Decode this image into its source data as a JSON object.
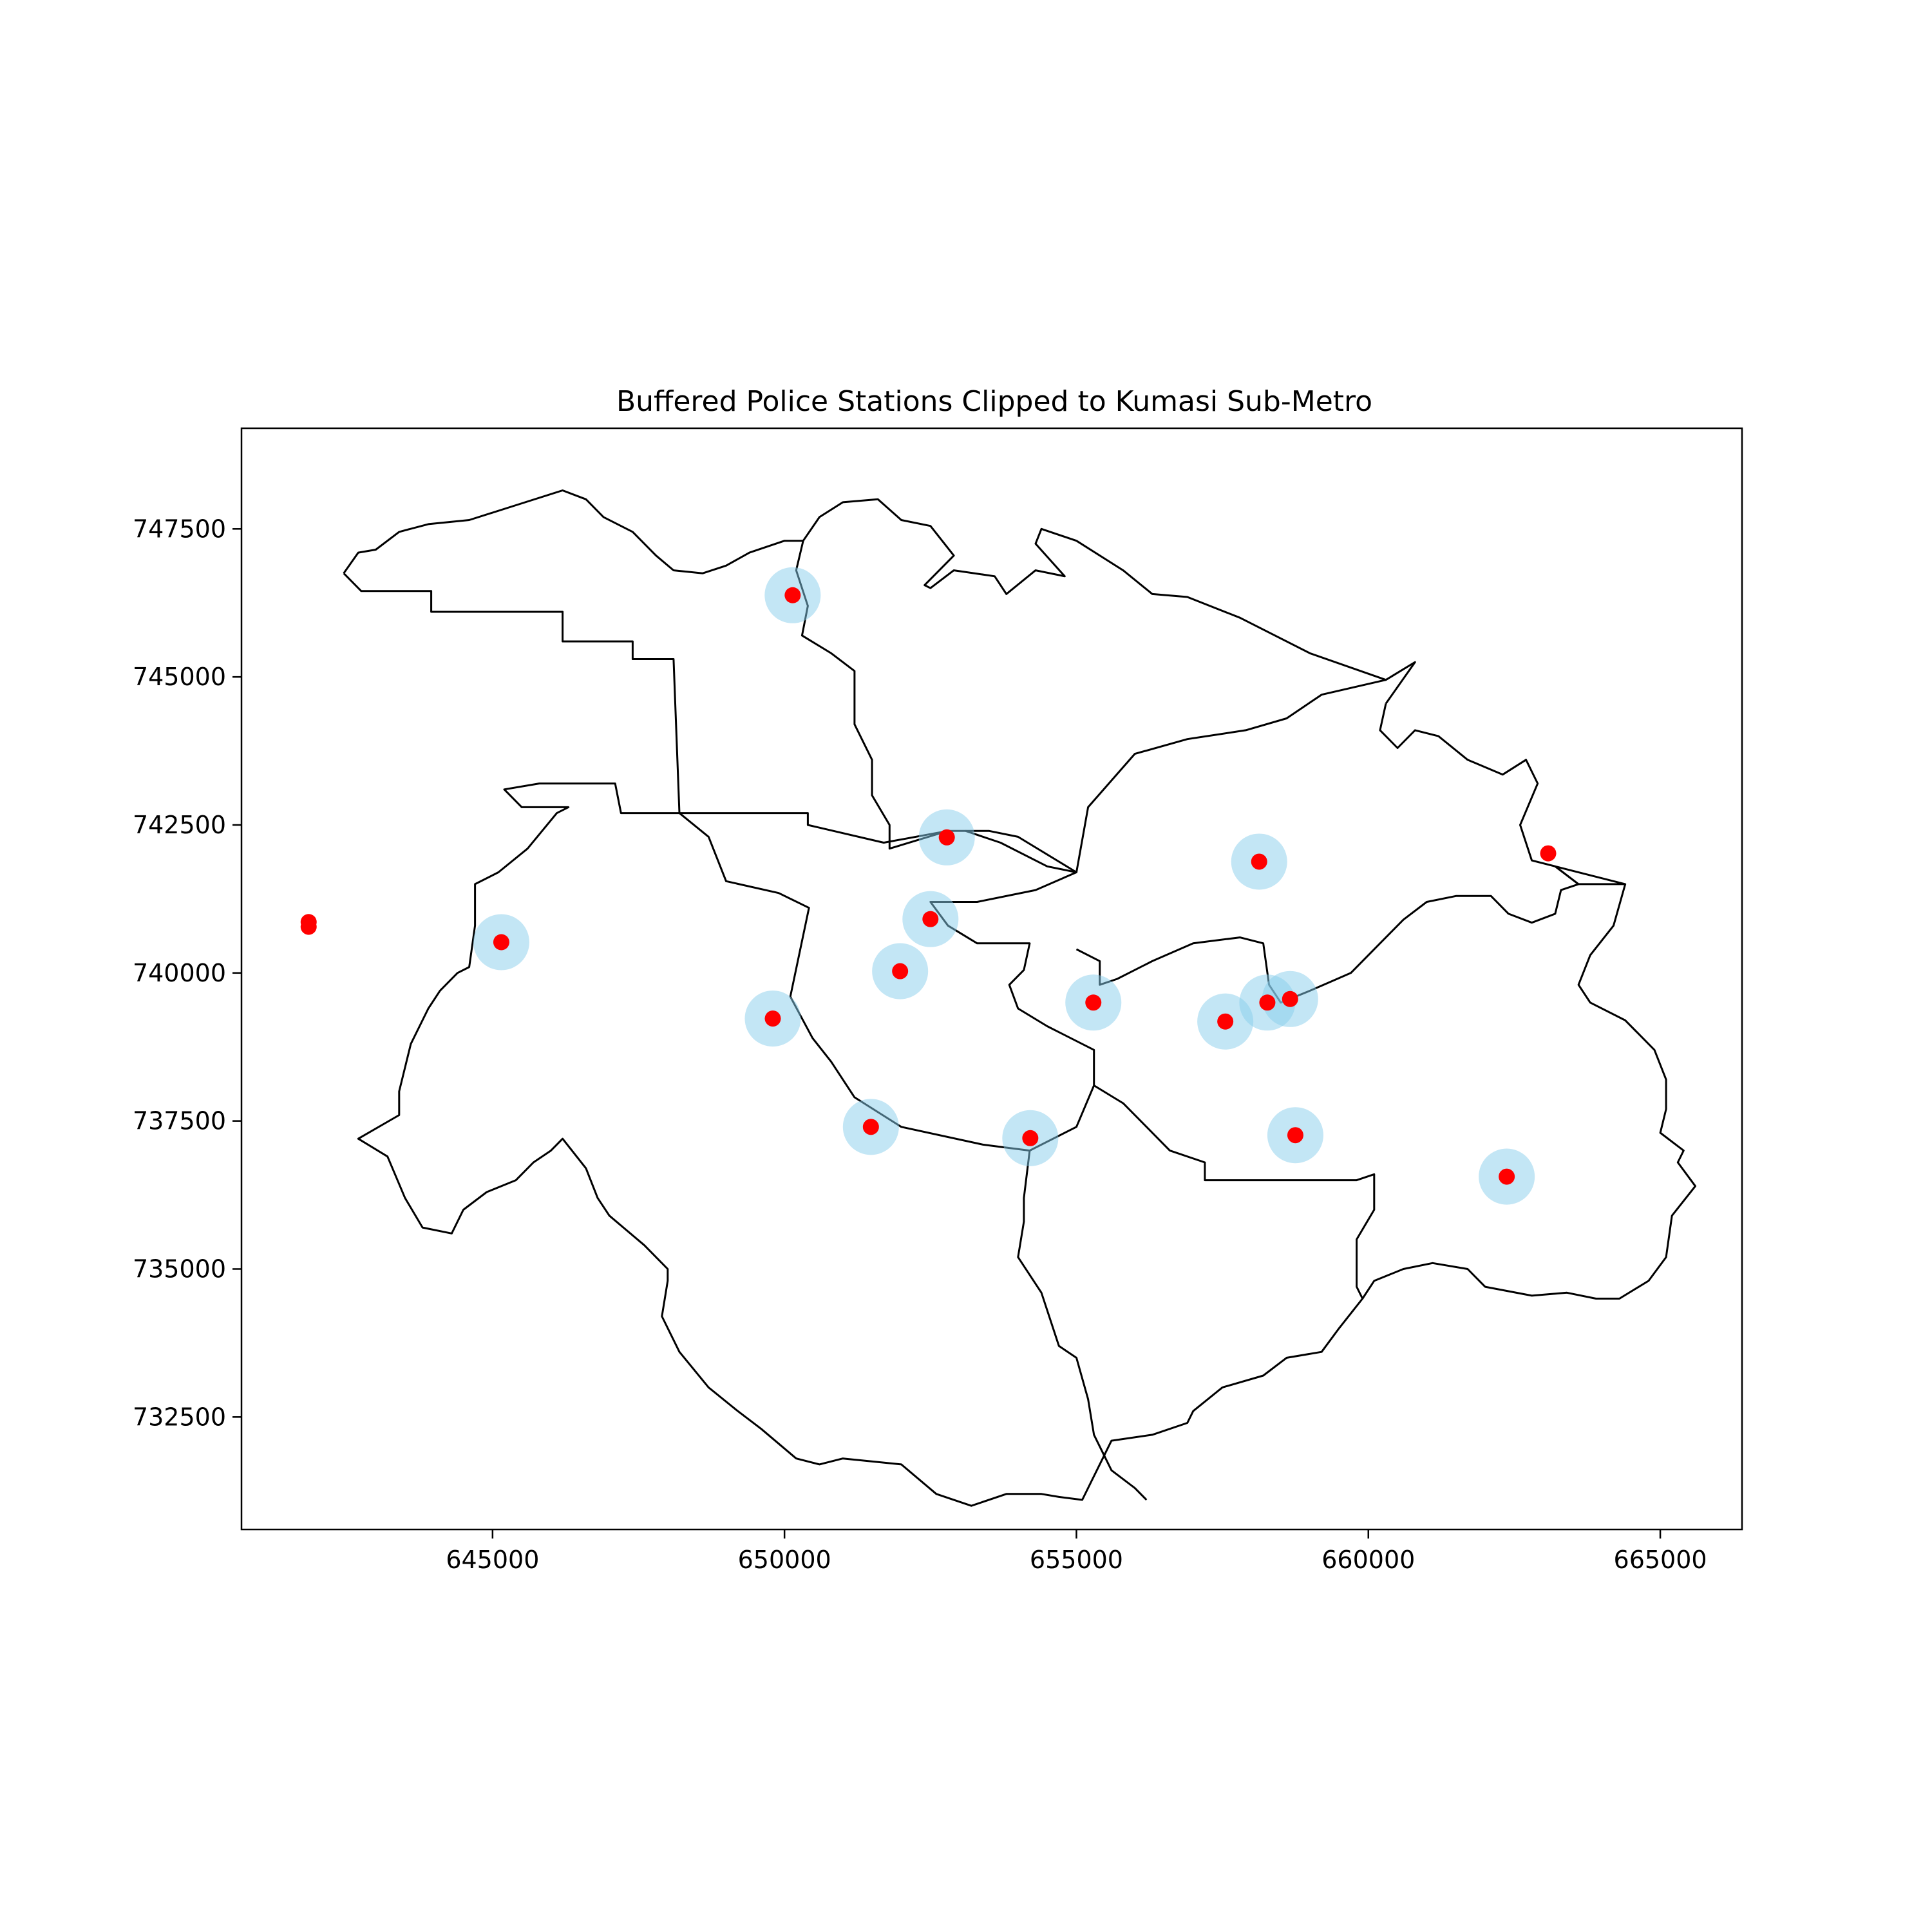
{
  "chart_data": {
    "type": "scatter",
    "title": "Buffered Police Stations Clipped to Kumasi Sub-Metro",
    "xlabel": "",
    "ylabel": "",
    "xlim": [
      640700,
      666400
    ],
    "ylim": [
      730600,
      749200
    ],
    "xticks": [
      645000,
      650000,
      655000,
      660000,
      665000
    ],
    "yticks": [
      732500,
      735000,
      737500,
      740000,
      742500,
      745000,
      747500
    ],
    "grid": false,
    "buffer_color": "#87CEEB",
    "point_color": "#FF0000",
    "boundary_color": "#000000",
    "buffer_radius": 480,
    "stations": [
      {
        "x": 641850,
        "y": 740780,
        "buffered": false
      },
      {
        "x": 641850,
        "y": 740860,
        "buffered": false
      },
      {
        "x": 645150,
        "y": 740520,
        "buffered": true
      },
      {
        "x": 650140,
        "y": 746380,
        "buffered": true
      },
      {
        "x": 652780,
        "y": 742290,
        "buffered": true
      },
      {
        "x": 652500,
        "y": 740910,
        "buffered": true
      },
      {
        "x": 651980,
        "y": 740030,
        "buffered": true
      },
      {
        "x": 649800,
        "y": 739230,
        "buffered": true
      },
      {
        "x": 651480,
        "y": 737400,
        "buffered": true
      },
      {
        "x": 654210,
        "y": 737210,
        "buffered": true
      },
      {
        "x": 655290,
        "y": 739500,
        "buffered": true
      },
      {
        "x": 657550,
        "y": 739180,
        "buffered": true
      },
      {
        "x": 658270,
        "y": 739500,
        "buffered": true
      },
      {
        "x": 658660,
        "y": 739560,
        "buffered": true
      },
      {
        "x": 658130,
        "y": 741880,
        "buffered": true
      },
      {
        "x": 658750,
        "y": 737260,
        "buffered": true
      },
      {
        "x": 662370,
        "y": 736560,
        "buffered": true
      },
      {
        "x": 663080,
        "y": 742020,
        "buffered": false
      }
    ],
    "boundaries": [
      [
        [
          642450,
          746750
        ],
        [
          642700,
          747100
        ],
        [
          643000,
          747150
        ],
        [
          643400,
          747450
        ],
        [
          643900,
          747580
        ],
        [
          644600,
          747650
        ],
        [
          645400,
          747900
        ],
        [
          646200,
          748150
        ],
        [
          646600,
          748000
        ],
        [
          646900,
          747700
        ],
        [
          647400,
          747450
        ],
        [
          647800,
          747050
        ],
        [
          648100,
          746800
        ],
        [
          648600,
          746750
        ],
        [
          649000,
          746880
        ],
        [
          649400,
          747100
        ],
        [
          650000,
          747300
        ],
        [
          650320,
          747300
        ],
        [
          650600,
          747700
        ],
        [
          651000,
          747950
        ],
        [
          651600,
          748000
        ],
        [
          652000,
          747650
        ],
        [
          652500,
          747550
        ],
        [
          652900,
          747050
        ],
        [
          652400,
          746550
        ],
        [
          652500,
          746500
        ],
        [
          652900,
          746800
        ],
        [
          653600,
          746700
        ],
        [
          653800,
          746400
        ],
        [
          654300,
          746800
        ],
        [
          654800,
          746700
        ],
        [
          654300,
          747250
        ],
        [
          654400,
          747500
        ],
        [
          655000,
          747300
        ],
        [
          655800,
          746800
        ],
        [
          656300,
          746400
        ],
        [
          656900,
          746350
        ],
        [
          657800,
          746000
        ],
        [
          659000,
          745400
        ],
        [
          660300,
          744950
        ],
        [
          660800,
          745250
        ],
        [
          660300,
          744550
        ]
      ],
      [
        [
          642450,
          746750
        ],
        [
          642750,
          746450
        ],
        [
          643200,
          746450
        ],
        [
          643950,
          746450
        ],
        [
          643950,
          746100
        ],
        [
          645600,
          746100
        ],
        [
          646200,
          746100
        ],
        [
          646200,
          745600
        ],
        [
          647400,
          745600
        ],
        [
          647400,
          745300
        ],
        [
          648100,
          745300
        ],
        [
          648200,
          742700
        ],
        [
          648700,
          742300
        ],
        [
          649000,
          741550
        ],
        [
          649900,
          741350
        ],
        [
          650420,
          741100
        ],
        [
          650100,
          739600
        ],
        [
          650480,
          738900
        ],
        [
          650800,
          738500
        ],
        [
          651200,
          737900
        ],
        [
          652000,
          737400
        ],
        [
          653400,
          737100
        ],
        [
          654200,
          737000
        ],
        [
          655000,
          737400
        ],
        [
          655300,
          738100
        ],
        [
          655300,
          738700
        ],
        [
          654500,
          739100
        ],
        [
          654000,
          739400
        ],
        [
          653850,
          739800
        ],
        [
          654100,
          740050
        ],
        [
          654200,
          740500
        ],
        [
          653300,
          740500
        ],
        [
          652800,
          740800
        ],
        [
          652500,
          741200
        ],
        [
          653300,
          741200
        ],
        [
          654300,
          741400
        ],
        [
          655000,
          741700
        ],
        [
          654500,
          741800
        ],
        [
          653700,
          742200
        ],
        [
          653100,
          742400
        ]
      ],
      [
        [
          648200,
          742700
        ],
        [
          649000,
          742700
        ],
        [
          650400,
          742700
        ],
        [
          650400,
          742500
        ],
        [
          651700,
          742200
        ],
        [
          652800,
          742400
        ],
        [
          653500,
          742400
        ],
        [
          654000,
          742300
        ],
        [
          655000,
          741700
        ]
      ],
      [
        [
          650320,
          747300
        ],
        [
          650200,
          746800
        ],
        [
          650400,
          746200
        ],
        [
          650300,
          745700
        ],
        [
          650800,
          745400
        ],
        [
          651200,
          745100
        ],
        [
          651200,
          744200
        ],
        [
          651500,
          743600
        ],
        [
          651500,
          743000
        ],
        [
          651800,
          742500
        ],
        [
          651800,
          742100
        ],
        [
          652800,
          742400
        ]
      ],
      [
        [
          655000,
          741700
        ],
        [
          655200,
          742800
        ],
        [
          656000,
          743700
        ],
        [
          656900,
          743950
        ],
        [
          657900,
          744100
        ],
        [
          658600,
          744300
        ],
        [
          659200,
          744700
        ],
        [
          660300,
          744950
        ]
      ],
      [
        [
          660300,
          744550
        ],
        [
          660200,
          744100
        ],
        [
          660500,
          743800
        ],
        [
          660800,
          744100
        ],
        [
          661200,
          744000
        ],
        [
          661700,
          743600
        ],
        [
          662300,
          743350
        ],
        [
          662700,
          743600
        ],
        [
          662900,
          743200
        ],
        [
          662600,
          742500
        ],
        [
          662800,
          741900
        ],
        [
          663200,
          741800
        ],
        [
          663600,
          741500
        ],
        [
          663300,
          741400
        ],
        [
          663200,
          741000
        ],
        [
          662800,
          740850
        ],
        [
          662400,
          741000
        ],
        [
          662100,
          741300
        ],
        [
          661500,
          741300
        ],
        [
          661000,
          741200
        ],
        [
          660600,
          740900
        ],
        [
          660200,
          740500
        ],
        [
          659700,
          740000
        ],
        [
          659000,
          739700
        ],
        [
          658500,
          739500
        ],
        [
          658300,
          739800
        ],
        [
          658200,
          740500
        ],
        [
          657800,
          740600
        ],
        [
          657000,
          740500
        ],
        [
          656300,
          740200
        ],
        [
          655700,
          739900
        ],
        [
          655400,
          739800
        ],
        [
          655400,
          740200
        ],
        [
          655000,
          740400
        ]
      ],
      [
        [
          664400,
          741500
        ],
        [
          663600,
          741500
        ],
        [
          663200,
          741800
        ],
        [
          664400,
          741500
        ],
        [
          664200,
          740800
        ],
        [
          663800,
          740300
        ],
        [
          663600,
          739800
        ],
        [
          663800,
          739500
        ],
        [
          664400,
          739200
        ],
        [
          664900,
          738700
        ],
        [
          665100,
          738200
        ],
        [
          665100,
          737700
        ],
        [
          665000,
          737300
        ],
        [
          665400,
          737000
        ],
        [
          665300,
          736800
        ],
        [
          665600,
          736400
        ],
        [
          665200,
          735900
        ],
        [
          665100,
          735200
        ],
        [
          664800,
          734800
        ],
        [
          664300,
          734500
        ],
        [
          663900,
          734500
        ],
        [
          663400,
          734600
        ],
        [
          662800,
          734550
        ],
        [
          662000,
          734700
        ],
        [
          661700,
          735000
        ],
        [
          661100,
          735100
        ],
        [
          660600,
          735000
        ],
        [
          660100,
          734800
        ],
        [
          659900,
          734500
        ]
      ],
      [
        [
          655300,
          738100
        ],
        [
          655800,
          737800
        ],
        [
          656200,
          737400
        ],
        [
          656600,
          737000
        ],
        [
          657200,
          736800
        ],
        [
          657200,
          736500
        ],
        [
          658500,
          736500
        ],
        [
          658800,
          736500
        ],
        [
          659800,
          736500
        ],
        [
          660100,
          736600
        ],
        [
          660100,
          736000
        ],
        [
          659800,
          735500
        ],
        [
          659800,
          734700
        ],
        [
          659900,
          734500
        ],
        [
          659500,
          734000
        ],
        [
          659200,
          733600
        ],
        [
          658600,
          733500
        ],
        [
          658200,
          733200
        ],
        [
          657500,
          733000
        ],
        [
          657000,
          732600
        ],
        [
          656900,
          732400
        ],
        [
          656300,
          732200
        ],
        [
          655600,
          732100
        ],
        [
          655400,
          731700
        ],
        [
          655100,
          731100
        ],
        [
          654700,
          731150
        ],
        [
          654400,
          731200
        ],
        [
          653800,
          731200
        ],
        [
          653200,
          731000
        ],
        [
          652600,
          731200
        ],
        [
          652000,
          731700
        ],
        [
          651000,
          731800
        ],
        [
          650600,
          731700
        ],
        [
          650200,
          731800
        ],
        [
          649600,
          732300
        ],
        [
          649200,
          732600
        ],
        [
          648700,
          733000
        ],
        [
          648200,
          733600
        ],
        [
          647900,
          734200
        ],
        [
          648000,
          734800
        ],
        [
          648000,
          735000
        ],
        [
          647600,
          735400
        ],
        [
          647000,
          735900
        ],
        [
          646800,
          736200
        ],
        [
          646600,
          736700
        ],
        [
          646200,
          737200
        ],
        [
          646000,
          737000
        ],
        [
          645700,
          736800
        ],
        [
          645400,
          736500
        ],
        [
          644900,
          736300
        ],
        [
          644500,
          736000
        ],
        [
          644300,
          735600
        ],
        [
          643800,
          735700
        ],
        [
          643500,
          736200
        ],
        [
          643200,
          736900
        ],
        [
          642700,
          737200
        ],
        [
          643400,
          737600
        ],
        [
          643400,
          738000
        ],
        [
          643600,
          738800
        ],
        [
          643900,
          739400
        ],
        [
          644100,
          739700
        ],
        [
          644400,
          740000
        ],
        [
          644600,
          740100
        ],
        [
          644700,
          740800
        ],
        [
          644700,
          741500
        ],
        [
          645100,
          741700
        ],
        [
          645600,
          742100
        ],
        [
          646100,
          742700
        ],
        [
          646300,
          742800
        ],
        [
          645500,
          742800
        ],
        [
          645200,
          743100
        ],
        [
          645800,
          743200
        ],
        [
          647100,
          743200
        ],
        [
          647200,
          742700
        ],
        [
          648200,
          742700
        ]
      ],
      [
        [
          654200,
          737000
        ],
        [
          654100,
          736200
        ],
        [
          654100,
          735800
        ],
        [
          654000,
          735200
        ],
        [
          654400,
          734600
        ],
        [
          654700,
          733700
        ],
        [
          655000,
          733500
        ],
        [
          655200,
          732800
        ],
        [
          655300,
          732200
        ],
        [
          655600,
          731600
        ],
        [
          656000,
          731300
        ],
        [
          656200,
          731100
        ]
      ]
    ]
  }
}
